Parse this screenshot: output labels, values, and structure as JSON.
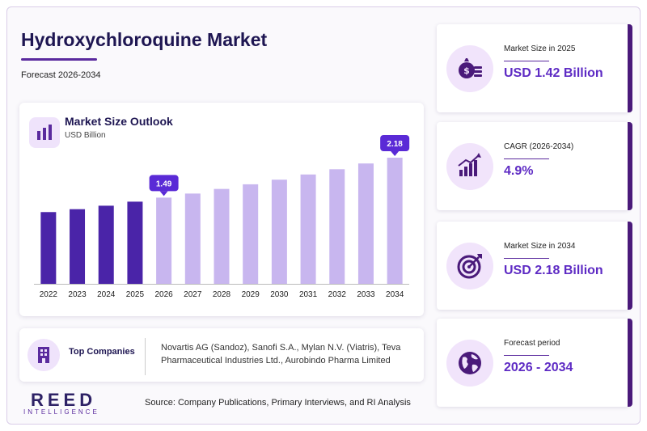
{
  "header": {
    "title": "Hydroxychloroquine Market",
    "subtitle": "Forecast 2026-2034"
  },
  "chart_data": {
    "type": "bar",
    "title": "Market Size Outlook",
    "ylabel": "USD Billion",
    "categories": [
      "2022",
      "2023",
      "2024",
      "2025",
      "2026",
      "2027",
      "2028",
      "2029",
      "2030",
      "2031",
      "2032",
      "2033",
      "2034"
    ],
    "values": [
      1.24,
      1.29,
      1.35,
      1.42,
      1.49,
      1.56,
      1.64,
      1.72,
      1.8,
      1.89,
      1.98,
      2.08,
      2.18
    ],
    "historical_color": "#4a24a8",
    "forecast_color": "#c8b6ef",
    "annotations": [
      {
        "category": "2026",
        "label": "1.49"
      },
      {
        "category": "2034",
        "label": "2.18"
      }
    ],
    "ylim": [
      0,
      2.18
    ],
    "grid": false
  },
  "companies": {
    "label": "Top Companies",
    "text": "Novartis AG (Sandoz), Sanofi S.A., Mylan N.V. (Viatris), Teva Pharmaceutical Industries Ltd., Aurobindo Pharma Limited"
  },
  "brand": {
    "name": "REED",
    "tagline": "INTELLIGENCE"
  },
  "source": "Source: Company Publications, Primary Interviews, and RI Analysis",
  "kpis": [
    {
      "label": "Market Size in 2025",
      "value": "USD 1.42 Billion",
      "icon": "money-bag-icon"
    },
    {
      "label": "CAGR (2026-2034)",
      "value": "4.9%",
      "icon": "growth-chart-icon"
    },
    {
      "label": "Market Size in 2034",
      "value": "USD 2.18 Billion",
      "icon": "target-icon"
    },
    {
      "label": "Forecast period",
      "value": "2026 - 2034",
      "icon": "globe-icon"
    }
  ],
  "colors": {
    "accent": "#5e2bc4",
    "dark": "#1e1652",
    "callout": "#5a2ad6"
  }
}
